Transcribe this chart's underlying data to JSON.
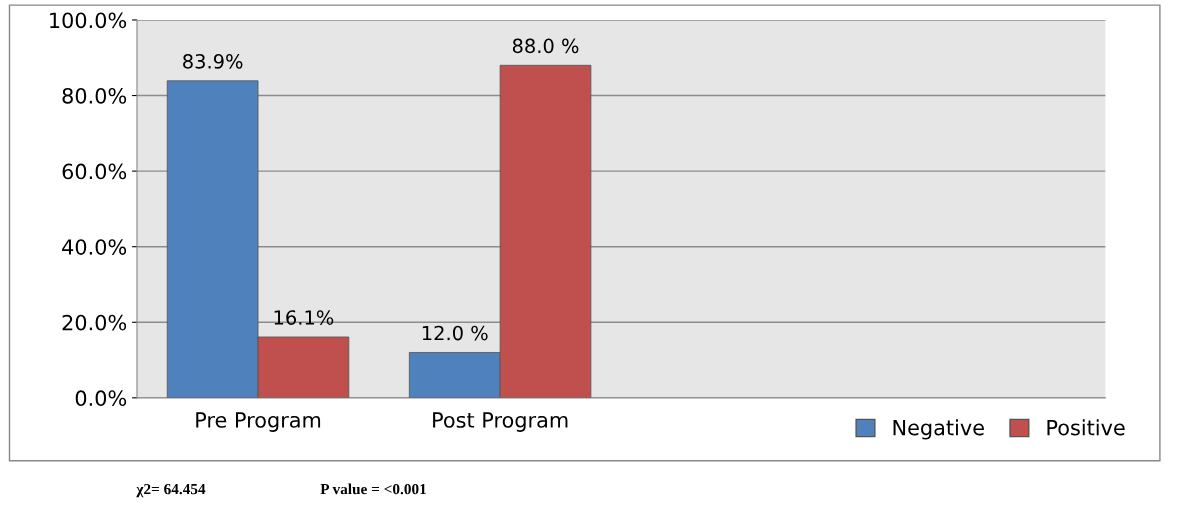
{
  "chart_data": {
    "type": "bar",
    "categories": [
      "Pre Program",
      "Post Program",
      null,
      null
    ],
    "series": [
      {
        "name": "Negative",
        "color": "#4f81bd",
        "values": [
          83.9,
          12.0,
          null,
          null
        ],
        "value_labels": [
          "83.9%",
          "12.0 %",
          null,
          null
        ]
      },
      {
        "name": "Positive",
        "color": "#c0504d",
        "values": [
          16.1,
          88.0,
          null,
          null
        ],
        "value_labels": [
          "16.1%",
          "88.0 %",
          null,
          null
        ]
      }
    ],
    "ylim": [
      0,
      100
    ],
    "yticks": [
      {
        "value": 0,
        "label": "0.0%"
      },
      {
        "value": 20,
        "label": "20.0%"
      },
      {
        "value": 40,
        "label": "40.0%"
      },
      {
        "value": 60,
        "label": "60.0%"
      },
      {
        "value": 80,
        "label": "80.0%"
      },
      {
        "value": 100,
        "label": "100.0%"
      }
    ],
    "grid": "y",
    "legend": "bottom right",
    "annotations": [
      "χ2= 64.454",
      "P value = <0.001"
    ]
  }
}
